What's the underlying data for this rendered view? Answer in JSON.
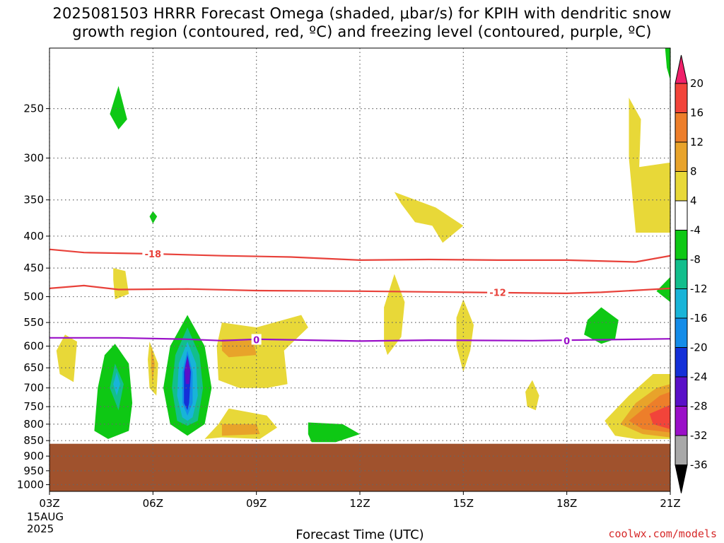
{
  "header": {
    "title_line1": "2025081503 HRRR Forecast Omega (shaded, μbar/s) for KPIH with dendritic snow",
    "title_line2": "growth region (contoured, red, ºC) and freezing level (contoured, purple, ºC)"
  },
  "footer": {
    "xlabel": "Forecast Time (UTC)",
    "credit": "coolwx.com/models"
  },
  "colors": {
    "ground": "#a0522d",
    "dgz_contour": "#e8413a",
    "freezing_contour": "#9a10c8",
    "grid": "#666666"
  },
  "chart_data": {
    "type": "heatmap",
    "title": "2025081503 HRRR Forecast Omega (shaded, μbar/s) for KPIH with dendritic snow growth region (contoured, red, ºC) and freezing level (contoured, purple, ºC)",
    "xlabel": "Forecast Time (UTC)",
    "ylabel": "",
    "x_ticks": [
      "03Z",
      "06Z",
      "09Z",
      "12Z",
      "15Z",
      "18Z",
      "21Z"
    ],
    "x_first_tick_date": [
      "15AUG",
      "2025"
    ],
    "x_range_hours": [
      3,
      21
    ],
    "y_ticks": [
      250,
      300,
      350,
      400,
      450,
      500,
      550,
      600,
      650,
      700,
      750,
      800,
      850,
      900,
      950,
      1000
    ],
    "y_range_hpa": [
      200,
      1025
    ],
    "y_scale": "log-pressure",
    "surface_pressure_hpa": 860,
    "grid": true,
    "colorbar": {
      "placement": "right",
      "labels": [
        "20",
        "16",
        "12",
        "8",
        "4",
        "-4",
        "-8",
        "-12",
        "-16",
        "-20",
        "-24",
        "-28",
        "-32",
        "-36"
      ],
      "colors": [
        "#f0206a",
        "#f2443a",
        "#ed7e2a",
        "#e8a32a",
        "#e8d838",
        "#ffffff",
        "#0ec814",
        "#12be8c",
        "#18b4d8",
        "#148ce8",
        "#1430d8",
        "#5a10c8",
        "#9a10c8",
        "#a8a8a8",
        "#000000"
      ]
    },
    "contours": [
      {
        "name": "dgz",
        "value": -18,
        "label": "-18",
        "points": [
          [
            3.0,
            420
          ],
          [
            4.0,
            425
          ],
          [
            6.0,
            427
          ],
          [
            8.0,
            430
          ],
          [
            10.0,
            432
          ],
          [
            12.0,
            437
          ],
          [
            14.0,
            436
          ],
          [
            16.0,
            437
          ],
          [
            18.0,
            437
          ],
          [
            20.0,
            440
          ],
          [
            21.0,
            430
          ]
        ]
      },
      {
        "name": "dgz",
        "value": -12,
        "label": "-12",
        "points": [
          [
            3.0,
            485
          ],
          [
            4.0,
            480
          ],
          [
            5.0,
            487
          ],
          [
            7.0,
            486
          ],
          [
            9.0,
            489
          ],
          [
            12.0,
            490
          ],
          [
            15.0,
            492
          ],
          [
            18.0,
            494
          ],
          [
            19.0,
            492
          ],
          [
            21.0,
            485
          ]
        ]
      },
      {
        "name": "freezing",
        "value": 0,
        "label": "0",
        "points": [
          [
            3.0,
            582
          ],
          [
            5.0,
            582
          ],
          [
            7.0,
            585
          ],
          [
            8.0,
            588
          ],
          [
            9.0,
            585
          ],
          [
            12.0,
            589
          ],
          [
            14.0,
            587
          ],
          [
            17.0,
            588
          ],
          [
            19.0,
            586
          ],
          [
            21.0,
            584
          ]
        ]
      }
    ],
    "contour_labels": [
      {
        "text": "-18",
        "x": 6.0,
        "p": 427,
        "contour": "dgz"
      },
      {
        "text": "-12",
        "x": 16.0,
        "p": 492,
        "contour": "dgz"
      },
      {
        "text": "0",
        "x": 9.0,
        "p": 586,
        "contour": "freezing"
      },
      {
        "text": "0",
        "x": 18.0,
        "p": 588,
        "contour": "freezing"
      }
    ],
    "shaded_regions": [
      {
        "omega": -8,
        "color": "#0ec814",
        "points": [
          [
            5.0,
            230
          ],
          [
            5.25,
            260
          ],
          [
            5.0,
            270
          ],
          [
            4.75,
            255
          ]
        ]
      },
      {
        "omega": -8,
        "color": "#0ec814",
        "points": [
          [
            6.0,
            365
          ],
          [
            6.12,
            372
          ],
          [
            6.0,
            382
          ],
          [
            5.9,
            372
          ]
        ]
      },
      {
        "omega": 4,
        "color": "#e8d838",
        "points": [
          [
            4.85,
            450
          ],
          [
            5.2,
            455
          ],
          [
            5.3,
            495
          ],
          [
            4.9,
            505
          ],
          [
            4.85,
            470
          ]
        ]
      },
      {
        "omega": 4,
        "color": "#e8d838",
        "points": [
          [
            3.45,
            575
          ],
          [
            3.8,
            590
          ],
          [
            3.7,
            685
          ],
          [
            3.3,
            665
          ],
          [
            3.2,
            610
          ]
        ]
      },
      {
        "omega": -8,
        "color": "#0ec814",
        "points": [
          [
            4.9,
            595
          ],
          [
            5.3,
            640
          ],
          [
            5.4,
            740
          ],
          [
            5.3,
            820
          ],
          [
            4.7,
            845
          ],
          [
            4.3,
            820
          ],
          [
            4.4,
            700
          ],
          [
            4.6,
            620
          ]
        ]
      },
      {
        "omega": -12,
        "color": "#12be8c",
        "points": [
          [
            4.9,
            640
          ],
          [
            5.15,
            690
          ],
          [
            5.0,
            760
          ],
          [
            4.75,
            700
          ]
        ]
      },
      {
        "omega": -16,
        "color": "#18b4d8",
        "points": [
          [
            4.95,
            660
          ],
          [
            5.05,
            690
          ],
          [
            4.95,
            720
          ],
          [
            4.85,
            690
          ]
        ]
      },
      {
        "omega": 4,
        "color": "#e8d838",
        "points": [
          [
            5.9,
            590
          ],
          [
            6.15,
            640
          ],
          [
            6.1,
            720
          ],
          [
            5.9,
            700
          ],
          [
            5.85,
            630
          ]
        ]
      },
      {
        "omega": 8,
        "color": "#e8a32a",
        "points": [
          [
            5.95,
            600
          ],
          [
            6.05,
            640
          ],
          [
            5.98,
            690
          ],
          [
            5.95,
            640
          ]
        ]
      },
      {
        "omega": -8,
        "color": "#0ec814",
        "points": [
          [
            7.0,
            535
          ],
          [
            7.5,
            600
          ],
          [
            7.7,
            700
          ],
          [
            7.5,
            800
          ],
          [
            7.0,
            835
          ],
          [
            6.5,
            800
          ],
          [
            6.3,
            700
          ],
          [
            6.5,
            600
          ]
        ]
      },
      {
        "omega": -12,
        "color": "#12be8c",
        "points": [
          [
            7.0,
            560
          ],
          [
            7.35,
            620
          ],
          [
            7.45,
            700
          ],
          [
            7.3,
            790
          ],
          [
            7.0,
            805
          ],
          [
            6.7,
            790
          ],
          [
            6.55,
            700
          ],
          [
            6.65,
            620
          ]
        ]
      },
      {
        "omega": -16,
        "color": "#18b4d8",
        "points": [
          [
            7.0,
            590
          ],
          [
            7.25,
            640
          ],
          [
            7.3,
            720
          ],
          [
            7.15,
            780
          ],
          [
            7.0,
            790
          ],
          [
            6.85,
            780
          ],
          [
            6.7,
            720
          ],
          [
            6.75,
            640
          ]
        ]
      },
      {
        "omega": -20,
        "color": "#148ce8",
        "points": [
          [
            7.0,
            610
          ],
          [
            7.15,
            660
          ],
          [
            7.15,
            740
          ],
          [
            7.0,
            775
          ],
          [
            6.85,
            740
          ],
          [
            6.85,
            660
          ]
        ]
      },
      {
        "omega": -24,
        "color": "#1430d8",
        "points": [
          [
            7.0,
            620
          ],
          [
            7.1,
            660
          ],
          [
            7.05,
            740
          ],
          [
            7.0,
            760
          ],
          [
            6.9,
            740
          ],
          [
            6.9,
            660
          ]
        ]
      },
      {
        "omega": -28,
        "color": "#5a10c8",
        "points": [
          [
            7.0,
            625
          ],
          [
            7.08,
            655
          ],
          [
            7.05,
            690
          ],
          [
            6.95,
            690
          ],
          [
            6.92,
            655
          ]
        ]
      },
      {
        "omega": 4,
        "color": "#e8d838",
        "points": [
          [
            8.0,
            550
          ],
          [
            9.0,
            560
          ],
          [
            10.3,
            535
          ],
          [
            10.5,
            560
          ],
          [
            9.8,
            610
          ],
          [
            9.9,
            690
          ],
          [
            9.3,
            700
          ],
          [
            8.5,
            700
          ],
          [
            7.9,
            680
          ],
          [
            7.85,
            600
          ]
        ]
      },
      {
        "omega": 8,
        "color": "#e8a32a",
        "points": [
          [
            8.0,
            585
          ],
          [
            8.9,
            585
          ],
          [
            9.0,
            620
          ],
          [
            8.2,
            625
          ],
          [
            8.0,
            610
          ]
        ]
      },
      {
        "omega": 4,
        "color": "#e8d838",
        "points": [
          [
            8.2,
            755
          ],
          [
            9.3,
            775
          ],
          [
            9.6,
            810
          ],
          [
            9.1,
            845
          ],
          [
            8.0,
            840
          ],
          [
            7.5,
            845
          ],
          [
            7.9,
            800
          ]
        ]
      },
      {
        "omega": 8,
        "color": "#e8a32a",
        "points": [
          [
            8.0,
            800
          ],
          [
            9.0,
            800
          ],
          [
            9.1,
            830
          ],
          [
            8.0,
            835
          ]
        ]
      },
      {
        "omega": -8,
        "color": "#0ec814",
        "points": [
          [
            10.5,
            795
          ],
          [
            11.5,
            800
          ],
          [
            12.0,
            830
          ],
          [
            11.3,
            855
          ],
          [
            10.6,
            855
          ],
          [
            10.5,
            830
          ]
        ]
      },
      {
        "omega": 4,
        "color": "#e8d838",
        "points": [
          [
            13.0,
            340
          ],
          [
            14.2,
            360
          ],
          [
            15.0,
            385
          ],
          [
            14.4,
            410
          ],
          [
            14.1,
            385
          ],
          [
            13.6,
            380
          ],
          [
            13.2,
            355
          ]
        ]
      },
      {
        "omega": 4,
        "color": "#e8d838",
        "points": [
          [
            13.0,
            460
          ],
          [
            13.3,
            510
          ],
          [
            13.2,
            580
          ],
          [
            12.8,
            620
          ],
          [
            12.7,
            595
          ],
          [
            12.7,
            520
          ]
        ]
      },
      {
        "omega": 4,
        "color": "#e8d838",
        "points": [
          [
            15.0,
            505
          ],
          [
            15.3,
            555
          ],
          [
            15.2,
            610
          ],
          [
            15.0,
            660
          ],
          [
            14.8,
            600
          ],
          [
            14.8,
            540
          ]
        ]
      },
      {
        "omega": 4,
        "color": "#e8d838",
        "points": [
          [
            17.0,
            680
          ],
          [
            17.2,
            720
          ],
          [
            17.1,
            760
          ],
          [
            16.85,
            750
          ],
          [
            16.8,
            710
          ]
        ]
      },
      {
        "omega": -8,
        "color": "#0ec814",
        "points": [
          [
            19.0,
            520
          ],
          [
            19.5,
            545
          ],
          [
            19.4,
            585
          ],
          [
            19.0,
            595
          ],
          [
            18.5,
            575
          ],
          [
            18.6,
            545
          ]
        ]
      },
      {
        "omega": -8,
        "color": "#0ec814",
        "points": [
          [
            21.0,
            465
          ],
          [
            21.0,
            510
          ],
          [
            20.6,
            490
          ]
        ]
      },
      {
        "omega": -8,
        "color": "#0ec814",
        "points": [
          [
            20.85,
            200
          ],
          [
            21.0,
            200
          ],
          [
            21.0,
            225
          ],
          [
            20.9,
            215
          ]
        ]
      },
      {
        "omega": 4,
        "color": "#e8d838",
        "points": [
          [
            19.8,
            240
          ],
          [
            20.15,
            260
          ],
          [
            20.1,
            310
          ],
          [
            21.0,
            305
          ],
          [
            21.0,
            395
          ],
          [
            20.0,
            395
          ],
          [
            19.8,
            300
          ]
        ]
      },
      {
        "omega": 4,
        "color": "#e8d838",
        "points": [
          [
            21.0,
            665
          ],
          [
            21.0,
            845
          ],
          [
            20.0,
            845
          ],
          [
            19.4,
            835
          ],
          [
            19.1,
            790
          ],
          [
            19.8,
            720
          ],
          [
            20.5,
            665
          ]
        ]
      },
      {
        "omega": 8,
        "color": "#e8a32a",
        "points": [
          [
            21.0,
            690
          ],
          [
            21.0,
            840
          ],
          [
            20.2,
            830
          ],
          [
            19.55,
            800
          ],
          [
            20.0,
            740
          ],
          [
            20.6,
            700
          ]
        ]
      },
      {
        "omega": 12,
        "color": "#ed7e2a",
        "points": [
          [
            21.0,
            710
          ],
          [
            21.0,
            825
          ],
          [
            20.2,
            815
          ],
          [
            19.8,
            790
          ],
          [
            20.3,
            750
          ],
          [
            20.7,
            720
          ]
        ]
      },
      {
        "omega": 16,
        "color": "#f2443a",
        "points": [
          [
            21.0,
            745
          ],
          [
            21.0,
            815
          ],
          [
            20.5,
            800
          ],
          [
            20.4,
            770
          ]
        ]
      }
    ]
  }
}
